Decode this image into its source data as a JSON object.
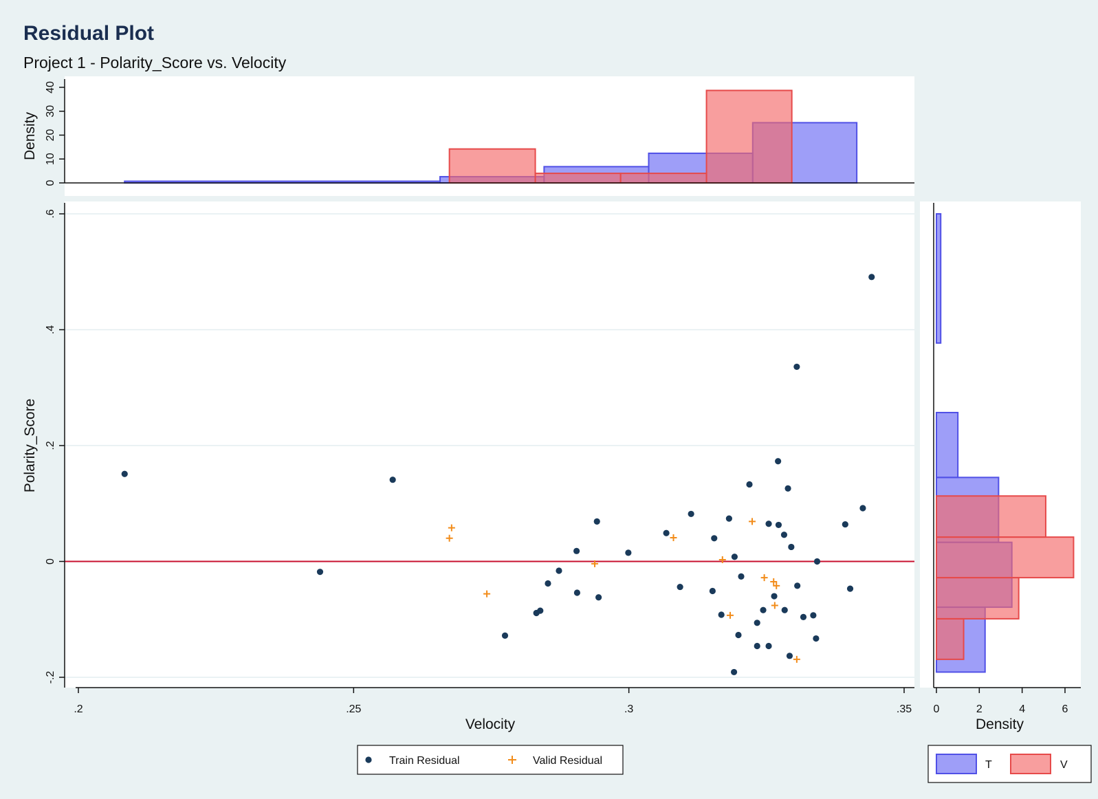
{
  "chart_data": {
    "type": "scatter",
    "title": "Residual Plot",
    "subtitle": "Project 1 - Polarity_Score vs. Velocity",
    "xlabel": "Velocity",
    "ylabel": "Polarity_Score",
    "xlim": [
      0.2,
      0.35
    ],
    "ylim": [
      -0.2,
      0.6
    ],
    "x_ticks": [
      ".2",
      ".25",
      ".3",
      ".35"
    ],
    "x_tick_values": [
      0.2,
      0.25,
      0.3,
      0.35
    ],
    "y_ticks": [
      "-.2",
      "0",
      ".2",
      ".4",
      ".6"
    ],
    "y_tick_values": [
      -0.2,
      0,
      0.2,
      0.4,
      0.6
    ],
    "grid": true,
    "reference_line": {
      "y": 0,
      "color": "#c8102e"
    },
    "series": [
      {
        "name": "Train Residual",
        "marker": "circle",
        "color": "#1a3a5a",
        "points": [
          [
            0.2084,
            0.151
          ],
          [
            0.2439,
            -0.018
          ],
          [
            0.2571,
            0.141
          ],
          [
            0.2775,
            -0.128
          ],
          [
            0.2832,
            -0.089
          ],
          [
            0.2839,
            -0.085
          ],
          [
            0.2853,
            -0.038
          ],
          [
            0.2873,
            -0.016
          ],
          [
            0.2905,
            0.018
          ],
          [
            0.2906,
            -0.054
          ],
          [
            0.2942,
            0.069
          ],
          [
            0.2945,
            -0.062
          ],
          [
            0.2999,
            0.015
          ],
          [
            0.3068,
            0.049
          ],
          [
            0.3093,
            -0.044
          ],
          [
            0.3113,
            0.082
          ],
          [
            0.3152,
            -0.051
          ],
          [
            0.3155,
            0.04
          ],
          [
            0.3168,
            -0.092
          ],
          [
            0.3182,
            0.074
          ],
          [
            0.3192,
            0.008
          ],
          [
            0.3191,
            -0.191
          ],
          [
            0.3199,
            -0.127
          ],
          [
            0.3204,
            -0.026
          ],
          [
            0.3219,
            0.133
          ],
          [
            0.3233,
            -0.106
          ],
          [
            0.3233,
            -0.146
          ],
          [
            0.3244,
            -0.084
          ],
          [
            0.3254,
            0.065
          ],
          [
            0.3254,
            -0.146
          ],
          [
            0.3264,
            -0.06
          ],
          [
            0.3272,
            0.063
          ],
          [
            0.3271,
            0.173
          ],
          [
            0.3282,
            0.046
          ],
          [
            0.3283,
            -0.084
          ],
          [
            0.3289,
            0.126
          ],
          [
            0.3292,
            -0.163
          ],
          [
            0.3295,
            0.025
          ],
          [
            0.3306,
            -0.042
          ],
          [
            0.3305,
            0.336
          ],
          [
            0.3317,
            -0.096
          ],
          [
            0.3335,
            -0.093
          ],
          [
            0.334,
            -0.133
          ],
          [
            0.3342,
            0.0
          ],
          [
            0.3393,
            0.064
          ],
          [
            0.3402,
            -0.047
          ],
          [
            0.3425,
            0.092
          ],
          [
            0.3441,
            0.491
          ]
        ]
      },
      {
        "name": "Valid Residual",
        "marker": "plus",
        "color": "#f28c1a",
        "points": [
          [
            0.2674,
            0.04
          ],
          [
            0.2678,
            0.058
          ],
          [
            0.2742,
            -0.056
          ],
          [
            0.2938,
            -0.004
          ],
          [
            0.3081,
            0.041
          ],
          [
            0.317,
            0.003
          ],
          [
            0.3184,
            -0.093
          ],
          [
            0.3224,
            0.069
          ],
          [
            0.3246,
            -0.028
          ],
          [
            0.3263,
            -0.035
          ],
          [
            0.3265,
            -0.076
          ],
          [
            0.3268,
            -0.042
          ],
          [
            0.3305,
            -0.169
          ]
        ]
      }
    ],
    "top_histogram": {
      "ylabel": "Density",
      "ylim": [
        0,
        40
      ],
      "y_ticks": [
        "0",
        "10",
        "20",
        "30",
        "40"
      ],
      "y_tick_values": [
        0,
        10,
        20,
        30,
        40
      ],
      "series": [
        {
          "name": "T",
          "color": "#6a6af5",
          "bins": [
            [
              0.2084,
              0.2657,
              0.7
            ],
            [
              0.2657,
              0.2846,
              2.6
            ],
            [
              0.2846,
              0.3036,
              6.8
            ],
            [
              0.3036,
              0.3225,
              12.4
            ],
            [
              0.3225,
              0.3414,
              25.2
            ]
          ]
        },
        {
          "name": "V",
          "color": "#f56a6a",
          "bins": [
            [
              0.2674,
              0.283,
              14.2
            ],
            [
              0.283,
              0.2985,
              4.0
            ],
            [
              0.2985,
              0.3141,
              4.0
            ],
            [
              0.3141,
              0.3296,
              38.7
            ]
          ]
        }
      ]
    },
    "right_histogram": {
      "xlabel": "Density",
      "xlim": [
        0,
        6.6
      ],
      "x_ticks": [
        "0",
        "2",
        "4",
        "6"
      ],
      "x_tick_values": [
        0,
        2,
        4,
        6
      ],
      "series": [
        {
          "name": "T",
          "color": "#6a6af5",
          "bins": [
            [
              -0.191,
              -0.079,
              2.27
            ],
            [
              -0.079,
              0.033,
              3.52
            ],
            [
              0.033,
              0.145,
              2.9
            ],
            [
              0.145,
              0.257,
              1.0
            ],
            [
              0.377,
              0.6,
              0.2
            ]
          ]
        },
        {
          "name": "V",
          "color": "#f56a6a",
          "bins": [
            [
              -0.169,
              -0.099,
              1.27
            ],
            [
              -0.099,
              -0.028,
              3.84
            ],
            [
              -0.028,
              0.042,
              6.4
            ],
            [
              0.042,
              0.113,
              5.1
            ]
          ]
        }
      ]
    },
    "legend_main": {
      "placement": "bottom"
    },
    "legend_hist": {
      "placement": "bottom-right",
      "entries": [
        "T",
        "V"
      ]
    }
  }
}
